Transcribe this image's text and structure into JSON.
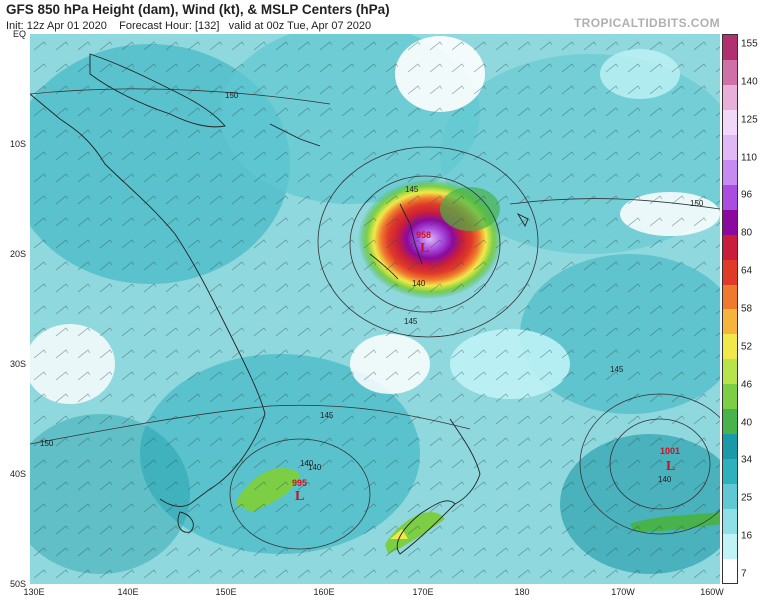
{
  "header": {
    "title": "GFS 850 hPa Height (dam), Wind (kt), & MSLP Centers (hPa)",
    "init": "Init: 12z Apr 01 2020",
    "forecast_hour": "Forecast Hour: [132]",
    "valid": "valid at 00z Tue, Apr 07 2020",
    "site": "TROPICALTIDBITS.COM"
  },
  "axes": {
    "lat_labels": [
      "EQ",
      "10S",
      "20S",
      "30S",
      "40S",
      "50S"
    ],
    "lon_labels": [
      "130E",
      "140E",
      "150E",
      "160E",
      "170E",
      "180",
      "170W",
      "160W"
    ]
  },
  "colorbar": {
    "ticks": [
      "155",
      "140",
      "125",
      "110",
      "96",
      "80",
      "64",
      "58",
      "52",
      "46",
      "40",
      "34",
      "25",
      "16",
      "7"
    ],
    "colors": [
      "#ffffff",
      "#bff3f6",
      "#8fe0e6",
      "#60c8d2",
      "#2fb0bd",
      "#1a9aa8",
      "#47b34a",
      "#7ccf45",
      "#b8e34a",
      "#f1e94a",
      "#f5b53c",
      "#ef7a2e",
      "#e03a28",
      "#c81e3c",
      "#8a0aa0",
      "#a84de0",
      "#c68af0",
      "#e0b8f5",
      "#f2d8f8",
      "#e8b0d8",
      "#d070a8",
      "#b03070"
    ]
  },
  "contour_labels": [
    "150",
    "145",
    "140",
    "150",
    "145",
    "140",
    "145",
    "140",
    "145",
    "140",
    "150"
  ],
  "mslp_centers": [
    {
      "value": "958",
      "symbol": "L"
    },
    {
      "value": "995",
      "symbol": "L"
    },
    {
      "value": "1001",
      "symbol": "L"
    }
  ],
  "colors": {
    "ocean_wind_low": "#8fd8dd",
    "land_outline": "#222222",
    "contour": "#333333",
    "center": "#d01020"
  }
}
